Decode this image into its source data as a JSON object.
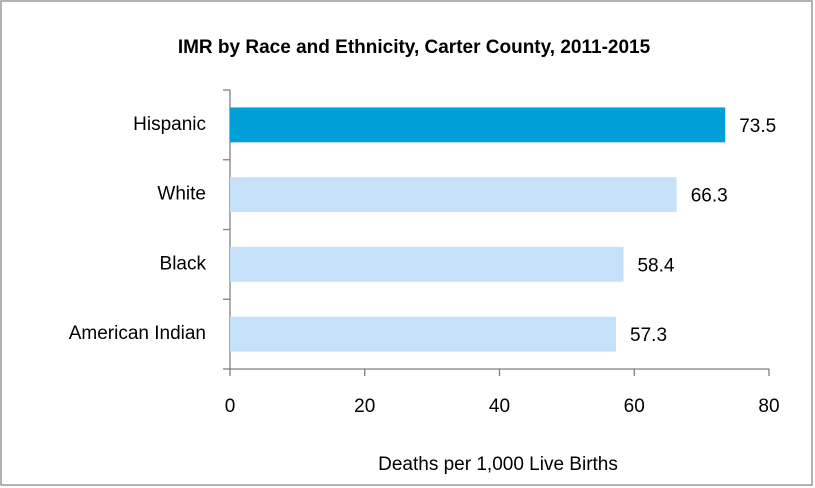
{
  "chart_data": {
    "type": "bar",
    "orientation": "horizontal",
    "title": "IMR by Race and Ethnicity, Carter County, 2011-2015",
    "x_label": "Deaths per 1,000 Live Births",
    "categories": [
      "Hispanic",
      "White",
      "Black",
      "American Indian"
    ],
    "values": [
      73.5,
      66.3,
      58.4,
      57.3
    ],
    "colors": [
      "#009fda",
      "#c5e0f8",
      "#c5e0f8",
      "#c5e0f8"
    ],
    "xlim": [
      0,
      80
    ],
    "xticks": [
      0,
      20,
      40,
      60,
      80
    ],
    "grid": false
  }
}
